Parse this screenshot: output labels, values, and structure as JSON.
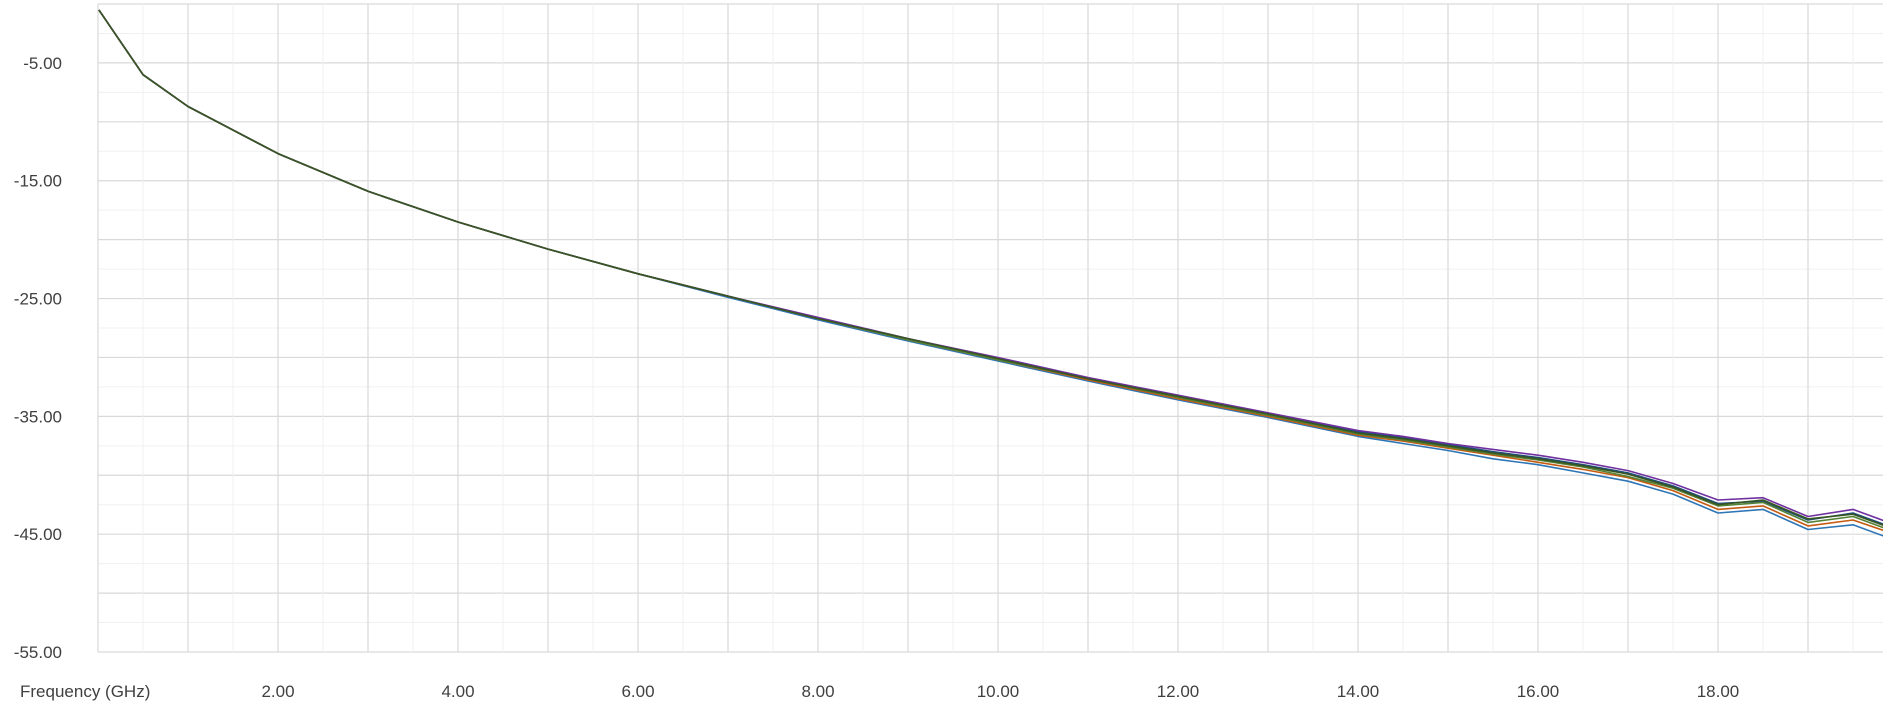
{
  "chart_data": {
    "type": "line",
    "title": "",
    "xlabel": "Frequency (GHz)",
    "ylabel": "",
    "xlim": [
      0,
      20
    ],
    "ylim": [
      -55,
      0
    ],
    "grid": true,
    "legend": "none",
    "x_tick_labels": [
      {
        "value": 2,
        "label": "2.00"
      },
      {
        "value": 4,
        "label": "4.00"
      },
      {
        "value": 6,
        "label": "6.00"
      },
      {
        "value": 8,
        "label": "8.00"
      },
      {
        "value": 10,
        "label": "10.00"
      },
      {
        "value": 12,
        "label": "12.00"
      },
      {
        "value": 14,
        "label": "14.00"
      },
      {
        "value": 16,
        "label": "16.00"
      },
      {
        "value": 18,
        "label": "18.00"
      }
    ],
    "y_tick_labels": [
      {
        "value": -5,
        "label": "-5.00"
      },
      {
        "value": -15,
        "label": "-15.00"
      },
      {
        "value": -25,
        "label": "-25.00"
      },
      {
        "value": -35,
        "label": "-35.00"
      },
      {
        "value": -45,
        "label": "-45.00"
      },
      {
        "value": -55,
        "label": "-55.00"
      }
    ],
    "series": [
      {
        "color": "#1f4e79",
        "values": [
          [
            0.01,
            -0.5
          ],
          [
            0.5,
            -6.0
          ],
          [
            1,
            -8.7
          ],
          [
            2,
            -12.7
          ],
          [
            3,
            -15.9
          ],
          [
            4,
            -18.5
          ],
          [
            5,
            -20.8
          ],
          [
            6,
            -22.9
          ],
          [
            7,
            -24.8
          ],
          [
            8,
            -26.7
          ],
          [
            9,
            -28.4
          ],
          [
            10,
            -30.1
          ],
          [
            11,
            -31.8
          ],
          [
            12,
            -33.3
          ],
          [
            13,
            -34.8
          ],
          [
            14,
            -36.3
          ],
          [
            14.5,
            -36.8
          ],
          [
            15,
            -37.4
          ],
          [
            15.5,
            -38.0
          ],
          [
            16,
            -38.5
          ],
          [
            16.5,
            -39.1
          ],
          [
            17,
            -39.8
          ],
          [
            17.5,
            -40.9
          ],
          [
            18,
            -42.4
          ],
          [
            18.5,
            -42.2
          ],
          [
            19,
            -43.8
          ],
          [
            19.5,
            -43.2
          ],
          [
            20,
            -44.6
          ]
        ]
      },
      {
        "color": "#2e75b6",
        "values": [
          [
            0.01,
            -0.5
          ],
          [
            0.5,
            -6.0
          ],
          [
            1,
            -8.7
          ],
          [
            2,
            -12.7
          ],
          [
            3,
            -15.9
          ],
          [
            4,
            -18.5
          ],
          [
            5,
            -20.8
          ],
          [
            6,
            -22.9
          ],
          [
            7,
            -24.9
          ],
          [
            8,
            -26.8
          ],
          [
            9,
            -28.6
          ],
          [
            10,
            -30.3
          ],
          [
            11,
            -32.0
          ],
          [
            12,
            -33.6
          ],
          [
            13,
            -35.1
          ],
          [
            14,
            -36.7
          ],
          [
            14.5,
            -37.3
          ],
          [
            15,
            -37.9
          ],
          [
            15.5,
            -38.6
          ],
          [
            16,
            -39.1
          ],
          [
            16.5,
            -39.8
          ],
          [
            17,
            -40.5
          ],
          [
            17.5,
            -41.6
          ],
          [
            18,
            -43.2
          ],
          [
            18.5,
            -42.9
          ],
          [
            19,
            -44.6
          ],
          [
            19.5,
            -44.2
          ],
          [
            20,
            -45.6
          ]
        ]
      },
      {
        "color": "#c55a11",
        "values": [
          [
            0.01,
            -0.5
          ],
          [
            0.5,
            -6.0
          ],
          [
            1,
            -8.7
          ],
          [
            2,
            -12.7
          ],
          [
            3,
            -15.9
          ],
          [
            4,
            -18.5
          ],
          [
            5,
            -20.8
          ],
          [
            6,
            -22.9
          ],
          [
            7,
            -24.8
          ],
          [
            8,
            -26.7
          ],
          [
            9,
            -28.5
          ],
          [
            10,
            -30.2
          ],
          [
            11,
            -31.9
          ],
          [
            12,
            -33.5
          ],
          [
            13,
            -35.0
          ],
          [
            14,
            -36.6
          ],
          [
            14.5,
            -37.1
          ],
          [
            15,
            -37.7
          ],
          [
            15.5,
            -38.3
          ],
          [
            16,
            -38.9
          ],
          [
            16.5,
            -39.5
          ],
          [
            17,
            -40.2
          ],
          [
            17.5,
            -41.3
          ],
          [
            18,
            -42.9
          ],
          [
            18.5,
            -42.6
          ],
          [
            19,
            -44.3
          ],
          [
            19.5,
            -43.8
          ],
          [
            20,
            -45.1
          ]
        ]
      },
      {
        "color": "#548235",
        "values": [
          [
            0.01,
            -0.5
          ],
          [
            0.5,
            -6.0
          ],
          [
            1,
            -8.7
          ],
          [
            2,
            -12.7
          ],
          [
            3,
            -15.9
          ],
          [
            4,
            -18.5
          ],
          [
            5,
            -20.8
          ],
          [
            6,
            -22.9
          ],
          [
            7,
            -24.8
          ],
          [
            8,
            -26.7
          ],
          [
            9,
            -28.5
          ],
          [
            10,
            -30.2
          ],
          [
            11,
            -31.8
          ],
          [
            12,
            -33.4
          ],
          [
            13,
            -34.9
          ],
          [
            14,
            -36.5
          ],
          [
            14.5,
            -37.0
          ],
          [
            15,
            -37.6
          ],
          [
            15.5,
            -38.2
          ],
          [
            16,
            -38.7
          ],
          [
            16.5,
            -39.3
          ],
          [
            17,
            -40.1
          ],
          [
            17.5,
            -41.1
          ],
          [
            18,
            -42.6
          ],
          [
            18.5,
            -42.3
          ],
          [
            19,
            -44.0
          ],
          [
            19.5,
            -43.5
          ],
          [
            20,
            -44.9
          ]
        ]
      },
      {
        "color": "#7030a0",
        "values": [
          [
            0.01,
            -0.5
          ],
          [
            0.5,
            -6.0
          ],
          [
            1,
            -8.7
          ],
          [
            2,
            -12.7
          ],
          [
            3,
            -15.9
          ],
          [
            4,
            -18.5
          ],
          [
            5,
            -20.8
          ],
          [
            6,
            -22.9
          ],
          [
            7,
            -24.8
          ],
          [
            8,
            -26.6
          ],
          [
            9,
            -28.4
          ],
          [
            10,
            -30.0
          ],
          [
            11,
            -31.7
          ],
          [
            12,
            -33.2
          ],
          [
            13,
            -34.7
          ],
          [
            14,
            -36.2
          ],
          [
            14.5,
            -36.7
          ],
          [
            15,
            -37.3
          ],
          [
            15.5,
            -37.8
          ],
          [
            16,
            -38.3
          ],
          [
            16.5,
            -38.9
          ],
          [
            17,
            -39.6
          ],
          [
            17.5,
            -40.7
          ],
          [
            18,
            -42.1
          ],
          [
            18.5,
            -41.9
          ],
          [
            19,
            -43.5
          ],
          [
            19.5,
            -42.9
          ],
          [
            20,
            -44.3
          ]
        ]
      },
      {
        "color": "#375623",
        "values": [
          [
            0.01,
            -0.5
          ],
          [
            0.5,
            -6.0
          ],
          [
            1,
            -8.7
          ],
          [
            2,
            -12.7
          ],
          [
            3,
            -15.9
          ],
          [
            4,
            -18.5
          ],
          [
            5,
            -20.8
          ],
          [
            6,
            -22.9
          ],
          [
            7,
            -24.8
          ],
          [
            8,
            -26.7
          ],
          [
            9,
            -28.4
          ],
          [
            10,
            -30.1
          ],
          [
            11,
            -31.8
          ],
          [
            12,
            -33.3
          ],
          [
            13,
            -34.8
          ],
          [
            14,
            -36.4
          ],
          [
            14.5,
            -36.9
          ],
          [
            15,
            -37.5
          ],
          [
            15.5,
            -38.1
          ],
          [
            16,
            -38.6
          ],
          [
            16.5,
            -39.2
          ],
          [
            17,
            -39.9
          ],
          [
            17.5,
            -41.0
          ],
          [
            18,
            -42.5
          ],
          [
            18.5,
            -42.1
          ],
          [
            19,
            -43.7
          ],
          [
            19.5,
            -43.3
          ],
          [
            20,
            -44.7
          ]
        ]
      }
    ]
  }
}
